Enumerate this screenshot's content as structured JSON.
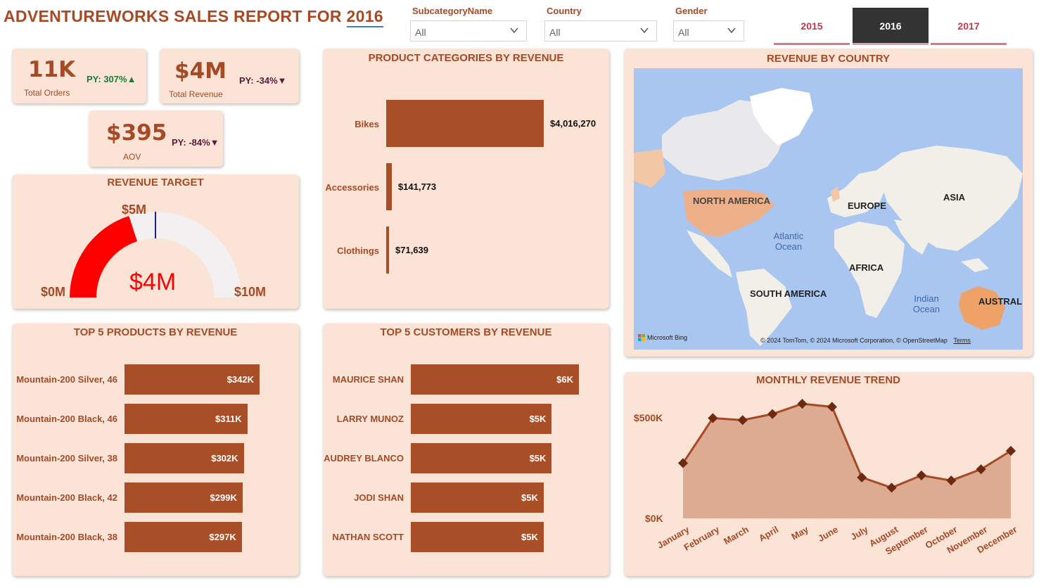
{
  "header": {
    "title_prefix": "ADVENTUREWORKS SALES REPORT FOR",
    "title_year": "2016"
  },
  "filters": [
    {
      "label": "SubcategoryName",
      "value": "All"
    },
    {
      "label": "Country",
      "value": "All"
    },
    {
      "label": "Gender",
      "value": "All"
    }
  ],
  "year_tabs": [
    {
      "label": "2015",
      "active": false
    },
    {
      "label": "2016",
      "active": true
    },
    {
      "label": "2017",
      "active": false
    }
  ],
  "kpis": {
    "orders": {
      "value": "11K",
      "label": "Total Orders",
      "py": "PY: 307%",
      "arrow": "▲"
    },
    "revenue": {
      "value": "$4M",
      "label": "Total Revenue",
      "py": "PY: -34%",
      "arrow": "▼"
    },
    "aov": {
      "value": "$395",
      "label": "AOV",
      "py": "PY: -84%",
      "arrow": "▼"
    }
  },
  "gauge": {
    "title": "REVENUE TARGET",
    "min_label": "$0M",
    "max_label": "$10M",
    "target_label": "$5M",
    "value_label": "$4M",
    "value": 4,
    "min": 0,
    "max": 10,
    "target": 5,
    "fill_color": "#ff0000",
    "track_color": "#f2f0f0"
  },
  "categories_chart": {
    "title": "PRODUCT CATEGORIES BY REVENUE",
    "items": [
      {
        "name": "Bikes",
        "value": 4016270,
        "label": "$4,016,270"
      },
      {
        "name": "Accessories",
        "value": 141773,
        "label": "$141,773"
      },
      {
        "name": "Clothings",
        "value": 71639,
        "label": "$71,639"
      }
    ]
  },
  "map": {
    "title": "REVENUE BY COUNTRY",
    "labels": [
      "NORTH AMERICA",
      "EUROPE",
      "ASIA",
      "AFRICA",
      "SOUTH AMERICA",
      "AUSTRALI"
    ],
    "oceans": [
      "Atlantic Ocean",
      "Indian Ocean"
    ],
    "logo": "Microsoft Bing",
    "copyright": "© 2024 TomTom, © 2024 Microsoft Corporation, © OpenStreetMap",
    "terms": "Terms"
  },
  "top_products": {
    "title": "TOP 5 PRODUCTS BY REVENUE",
    "items": [
      {
        "name": "Mountain-200 Silver, 46",
        "value": 342,
        "label": "$342K"
      },
      {
        "name": "Mountain-200 Black, 46",
        "value": 311,
        "label": "$311K"
      },
      {
        "name": "Mountain-200 Silver, 38",
        "value": 302,
        "label": "$302K"
      },
      {
        "name": "Mountain-200 Black, 42",
        "value": 299,
        "label": "$299K"
      },
      {
        "name": "Mountain-200 Black, 38",
        "value": 297,
        "label": "$297K"
      }
    ]
  },
  "top_customers": {
    "title": "TOP 5 CUSTOMERS BY REVENUE",
    "items": [
      {
        "name": "MAURICE SHAN",
        "value": 6.2,
        "label": "$6K"
      },
      {
        "name": "LARRY MUNOZ",
        "value": 5.2,
        "label": "$5K"
      },
      {
        "name": "AUDREY BLANCO",
        "value": 5.2,
        "label": "$5K"
      },
      {
        "name": "JODI SHAN",
        "value": 4.9,
        "label": "$5K"
      },
      {
        "name": "NATHAN SCOTT",
        "value": 4.9,
        "label": "$5K"
      }
    ]
  },
  "chart_data": {
    "type": "area",
    "title": "MONTHLY REVENUE TREND",
    "categories": [
      "January",
      "February",
      "March",
      "April",
      "May",
      "June",
      "July",
      "August",
      "September",
      "October",
      "November",
      "December"
    ],
    "values": [
      270,
      490,
      480,
      510,
      560,
      545,
      200,
      150,
      210,
      185,
      240,
      330
    ],
    "ylim": [
      0,
      550
    ],
    "ytick_labels": [
      "$0K",
      "$500K"
    ],
    "ytick_values": [
      0,
      500
    ],
    "line_color": "#a64a26",
    "fill_color": "#dcab91",
    "marker_color": "#6e2a10"
  },
  "colors": {
    "accent": "#a64a26",
    "card_bg": "#fbe3d6",
    "bar": "#a94f27"
  }
}
